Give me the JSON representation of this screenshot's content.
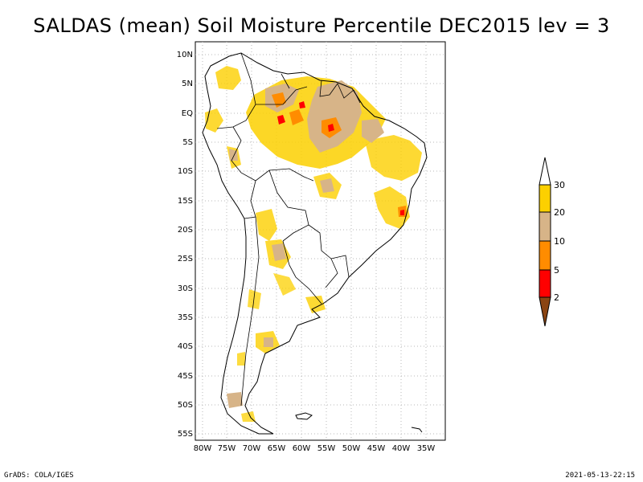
{
  "title": "SALDAS (mean) Soil Moisture Percentile DEC2015 lev = 3",
  "map": {
    "region": "South America",
    "lat_labels": [
      "10N",
      "5N",
      "EQ",
      "5S",
      "10S",
      "15S",
      "20S",
      "25S",
      "30S",
      "35S",
      "40S",
      "45S",
      "50S",
      "55S"
    ],
    "lon_labels": [
      "80W",
      "75W",
      "70W",
      "65W",
      "60W",
      "55W",
      "50W",
      "45W",
      "40W",
      "35W"
    ]
  },
  "legend": {
    "labels": [
      "30",
      "20",
      "10",
      "5",
      "2"
    ],
    "colors": {
      "above30": "#ffffff",
      "20_30": "#fcd000",
      "10_20": "#d7b488",
      "5_10": "#ff8c00",
      "2_5": "#ff0000",
      "below2": "#8b4513"
    }
  },
  "footer": {
    "left": "GrADS: COLA/IGES",
    "right": "2021-05-13-22:15"
  }
}
